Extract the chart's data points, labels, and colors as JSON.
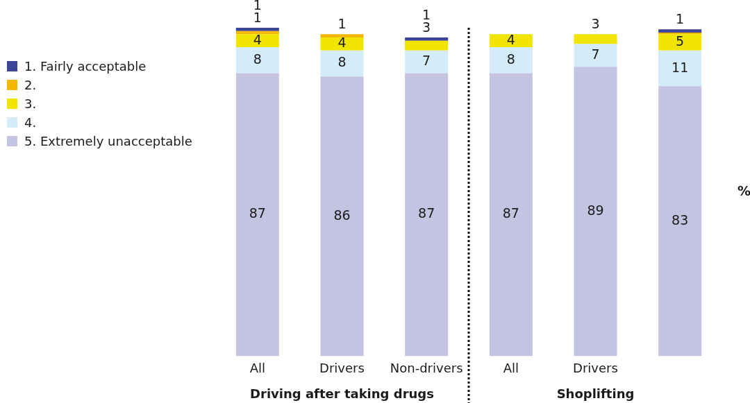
{
  "chart_data": {
    "type": "bar",
    "stacked": true,
    "categories": [
      "All",
      "Drivers",
      "Non-drivers",
      "All",
      "Drivers",
      null
    ],
    "ylabel": "%",
    "ylim": [
      0,
      101
    ],
    "tick_labels": "x",
    "grid": false,
    "legend": "left",
    "annotations": [
      "Driving after taking drugs",
      "Shoplifting"
    ],
    "series": [
      {
        "name": "5. Extremely unacceptable",
        "color": "#c4c4e2",
        "values": [
          87,
          86,
          87,
          87,
          89,
          83
        ],
        "value_labels": [
          "87",
          "86",
          "87",
          "87",
          "89",
          "83"
        ]
      },
      {
        "name": "4.",
        "color": "#d4ecf9",
        "values": [
          8,
          8,
          7,
          8,
          7,
          11
        ],
        "value_labels": [
          "8",
          "8",
          "7",
          "8",
          "7",
          "11"
        ]
      },
      {
        "name": "3.",
        "color": "#f0e400",
        "values": [
          4,
          4,
          3,
          4,
          3,
          5
        ],
        "value_labels": [
          "4",
          "4",
          "3",
          "4",
          "3",
          "5"
        ]
      },
      {
        "name": "2.",
        "color": "#f5b800",
        "values": [
          1,
          1,
          null,
          null,
          null,
          0.5
        ],
        "value_labels": [
          "1",
          "1",
          null,
          null,
          null,
          null
        ]
      },
      {
        "name": "1. Fairly acceptable",
        "color": "#3c4496",
        "values": [
          1,
          null,
          1,
          null,
          null,
          1
        ],
        "value_labels": [
          "1",
          null,
          "1",
          null,
          null,
          "1"
        ]
      }
    ]
  }
}
